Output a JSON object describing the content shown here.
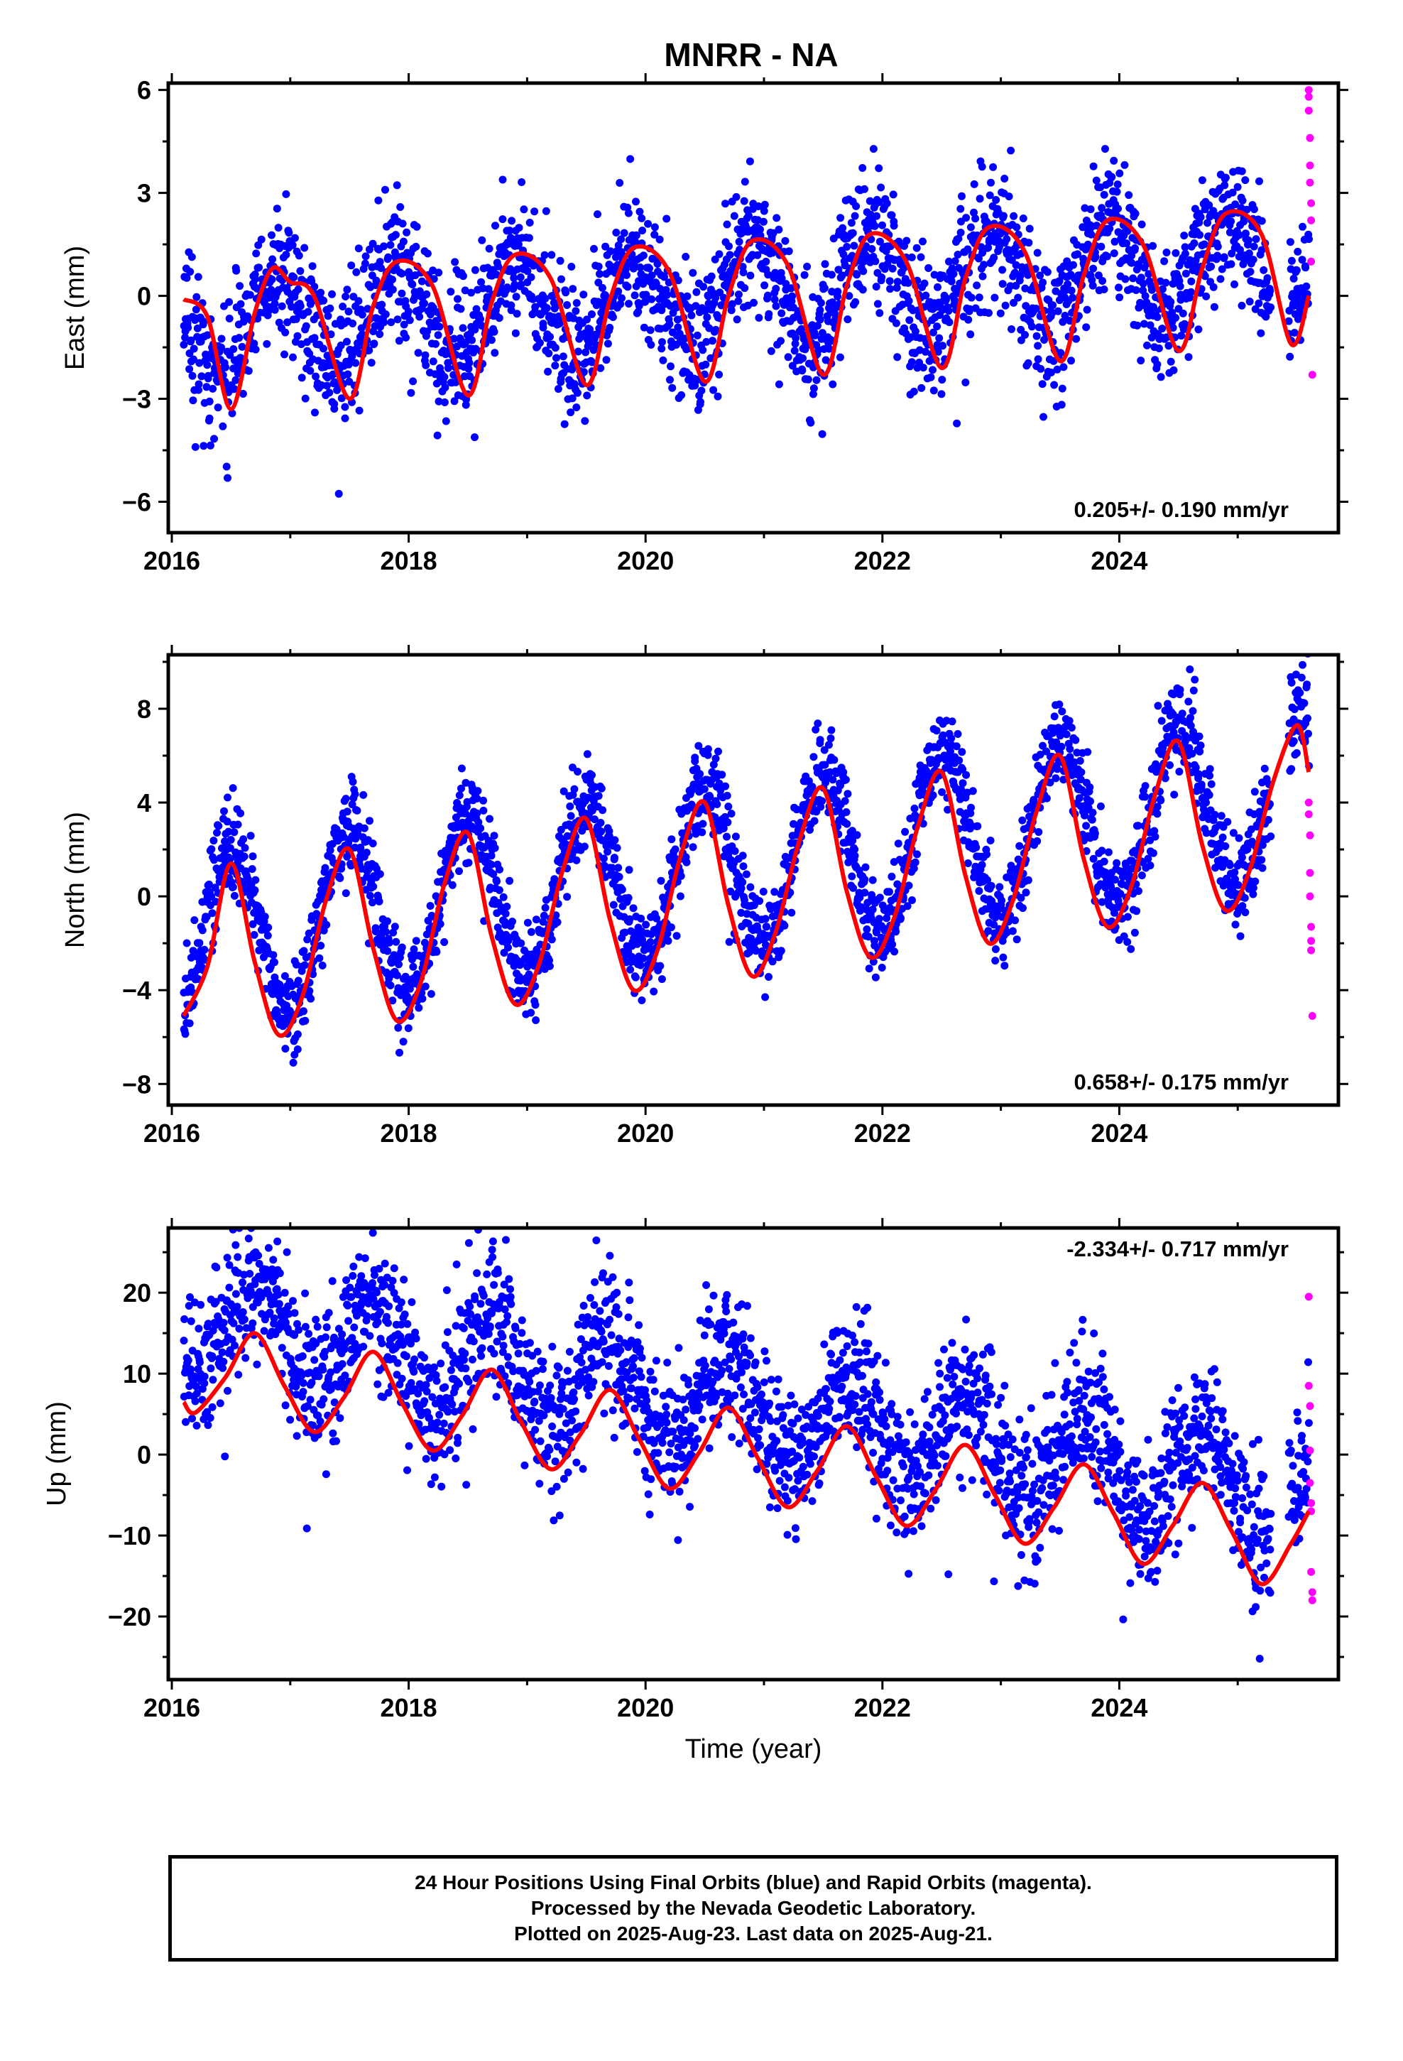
{
  "title": "MNRR - NA",
  "colors": {
    "final_orbits": "#0000ff",
    "rapid_orbits": "#ff00ff",
    "model": "#ff0000",
    "frame": "#000000"
  },
  "footer": {
    "line1": "24 Hour Positions Using Final Orbits (blue) and Rapid Orbits (magenta).",
    "line2": "Processed by the Nevada Geodetic Laboratory.",
    "line3": "Plotted on 2025-Aug-23. Last data on 2025-Aug-21."
  },
  "chart_data": [
    {
      "type": "scatter",
      "ylabel": "East (mm)",
      "xlabel": "",
      "xlim": [
        2015.97,
        2025.85
      ],
      "ylim": [
        -6.9,
        6.2
      ],
      "xticks": [
        2016,
        2018,
        2020,
        2022,
        2024
      ],
      "yticks": [
        -6,
        -3,
        0,
        3,
        6
      ],
      "yticklabels": [
        "−6",
        "−3",
        "0",
        "3",
        "6"
      ],
      "rate_label": "0.205+/- 0.190 mm/yr",
      "rate_position": "bottom-right",
      "series": [
        {
          "style": "final_scatter",
          "x_range": [
            2016.1,
            2025.6
          ],
          "trend": 0.205,
          "offset": -0.95,
          "seasonal_amp": 1.4,
          "seasonal_peak_fraction": 0.9,
          "scatter_sd": 1.0
        },
        {
          "style": "rapid_scatter",
          "x": [
            2025.6,
            2025.6,
            2025.6,
            2025.61,
            2025.61,
            2025.61,
            2025.62,
            2025.62,
            2025.62,
            2025.63
          ],
          "y": [
            6.0,
            5.8,
            5.4,
            4.6,
            3.8,
            3.3,
            2.7,
            2.2,
            1.0,
            -2.3
          ]
        },
        {
          "style": "model_line",
          "x": [
            2016.1,
            2016.3,
            2016.5,
            2016.7,
            2016.85,
            2017.0,
            2017.2,
            2017.5,
            2017.7,
            2017.9,
            2018.2,
            2018.5,
            2018.7,
            2018.9,
            2019.2,
            2019.5,
            2019.7,
            2019.9,
            2020.2,
            2020.5,
            2020.7,
            2020.9,
            2021.2,
            2021.5,
            2021.7,
            2021.9,
            2022.2,
            2022.5,
            2022.7,
            2022.9,
            2023.2,
            2023.5,
            2023.7,
            2023.9,
            2024.2,
            2024.5,
            2024.7,
            2024.9,
            2025.2,
            2025.45,
            2025.6
          ],
          "y": [
            -0.1,
            -0.6,
            -3.3,
            -0.5,
            0.8,
            0.4,
            0.0,
            -3.0,
            -0.3,
            1.0,
            0.3,
            -2.9,
            -0.2,
            1.2,
            0.5,
            -2.6,
            -0.1,
            1.4,
            0.7,
            -2.5,
            0.0,
            1.6,
            0.9,
            -2.3,
            0.3,
            1.8,
            1.0,
            -2.1,
            0.5,
            2.0,
            1.3,
            -1.9,
            0.6,
            2.2,
            1.5,
            -1.6,
            0.8,
            2.4,
            1.8,
            -1.4,
            0.0
          ]
        }
      ]
    },
    {
      "type": "scatter",
      "ylabel": "North (mm)",
      "xlabel": "",
      "xlim": [
        2015.97,
        2025.85
      ],
      "ylim": [
        -8.9,
        10.3
      ],
      "xticks": [
        2016,
        2018,
        2020,
        2022,
        2024
      ],
      "yticks": [
        -8,
        -4,
        0,
        4,
        8
      ],
      "yticklabels": [
        "−8",
        "−4",
        "0",
        "4",
        "8"
      ],
      "rate_label": "0.658+/- 0.175 mm/yr",
      "rate_position": "bottom-right",
      "series": [
        {
          "style": "final_scatter",
          "x_range": [
            2016.1,
            2025.6
          ],
          "trend": 0.658,
          "offset": -1.9,
          "seasonal_amp": 3.6,
          "seasonal_peak_fraction": 0.5,
          "scatter_sd": 1.0
        },
        {
          "style": "rapid_scatter",
          "x": [
            2025.6,
            2025.6,
            2025.61,
            2025.61,
            2025.61,
            2025.62,
            2025.62,
            2025.62,
            2025.63
          ],
          "y": [
            4.0,
            3.5,
            2.6,
            1.0,
            0.0,
            -1.3,
            -1.9,
            -2.3,
            -5.1
          ]
        },
        {
          "style": "model_line",
          "x": [
            2016.1,
            2016.3,
            2016.5,
            2016.7,
            2016.9,
            2017.1,
            2017.3,
            2017.5,
            2017.7,
            2017.9,
            2018.1,
            2018.3,
            2018.5,
            2018.7,
            2018.9,
            2019.1,
            2019.3,
            2019.5,
            2019.7,
            2019.9,
            2020.1,
            2020.3,
            2020.5,
            2020.7,
            2020.9,
            2021.1,
            2021.3,
            2021.5,
            2021.7,
            2021.9,
            2022.1,
            2022.3,
            2022.5,
            2022.7,
            2022.9,
            2023.1,
            2023.3,
            2023.5,
            2023.7,
            2023.9,
            2024.1,
            2024.3,
            2024.5,
            2024.7,
            2024.9,
            2025.1,
            2025.3,
            2025.5,
            2025.6
          ],
          "y": [
            -5.1,
            -3.0,
            1.4,
            -2.8,
            -5.9,
            -4.3,
            -0.2,
            2.0,
            -2.2,
            -5.3,
            -3.7,
            0.5,
            2.7,
            -1.7,
            -4.6,
            -2.9,
            1.1,
            3.3,
            -1.0,
            -4.0,
            -2.3,
            1.8,
            4.0,
            -0.4,
            -3.4,
            -1.5,
            2.4,
            4.6,
            0.2,
            -2.6,
            -0.9,
            3.0,
            5.3,
            0.9,
            -2.0,
            -0.2,
            3.6,
            6.0,
            1.6,
            -1.3,
            0.4,
            4.3,
            6.6,
            2.2,
            -0.6,
            1.1,
            4.9,
            7.3,
            5.3
          ]
        }
      ]
    },
    {
      "type": "scatter",
      "ylabel": "Up (mm)",
      "xlabel": "Time (year)",
      "xlim": [
        2015.97,
        2025.85
      ],
      "ylim": [
        -27.8,
        28.0
      ],
      "xticks": [
        2016,
        2018,
        2020,
        2022,
        2024
      ],
      "yticks": [
        -20,
        -10,
        0,
        10,
        20
      ],
      "yticklabels": [
        "−20",
        "−10",
        "0",
        "10",
        "20"
      ],
      "rate_label": "-2.334+/- 0.717 mm/yr",
      "rate_position": "top-right",
      "series": [
        {
          "style": "final_scatter",
          "x_range": [
            2016.1,
            2025.6
          ],
          "trend": -2.334,
          "offset": 17.0,
          "seasonal_amp": 6.0,
          "seasonal_peak_fraction": 0.7,
          "scatter_sd": 4.5
        },
        {
          "style": "rapid_scatter",
          "x": [
            2025.6,
            2025.6,
            2025.61,
            2025.61,
            2025.61,
            2025.62,
            2025.62,
            2025.62,
            2025.63,
            2025.63
          ],
          "y": [
            19.5,
            8.5,
            6.0,
            0.5,
            -3.5,
            -6.0,
            -7.0,
            -14.5,
            -17.0,
            -18.0
          ]
        },
        {
          "style": "model_line",
          "x": [
            2016.1,
            2016.2,
            2016.45,
            2016.7,
            2016.95,
            2017.2,
            2017.45,
            2017.7,
            2017.95,
            2018.2,
            2018.45,
            2018.7,
            2018.95,
            2019.2,
            2019.45,
            2019.7,
            2019.95,
            2020.2,
            2020.45,
            2020.7,
            2020.95,
            2021.2,
            2021.45,
            2021.7,
            2021.95,
            2022.2,
            2022.45,
            2022.7,
            2022.95,
            2023.2,
            2023.45,
            2023.7,
            2023.95,
            2024.2,
            2024.45,
            2024.7,
            2024.95,
            2025.2,
            2025.45,
            2025.6
          ],
          "y": [
            6.5,
            5.2,
            9.5,
            15.0,
            8.5,
            2.8,
            7.0,
            12.7,
            6.2,
            0.5,
            4.8,
            10.5,
            4.0,
            -1.8,
            2.5,
            8.0,
            1.8,
            -4.2,
            0.2,
            5.8,
            -0.5,
            -6.5,
            -2.0,
            3.5,
            -2.8,
            -8.8,
            -4.3,
            1.2,
            -5.0,
            -11.0,
            -6.5,
            -1.2,
            -7.2,
            -13.5,
            -8.8,
            -3.5,
            -9.5,
            -16.0,
            -11.0,
            -7.0
          ]
        }
      ]
    }
  ]
}
